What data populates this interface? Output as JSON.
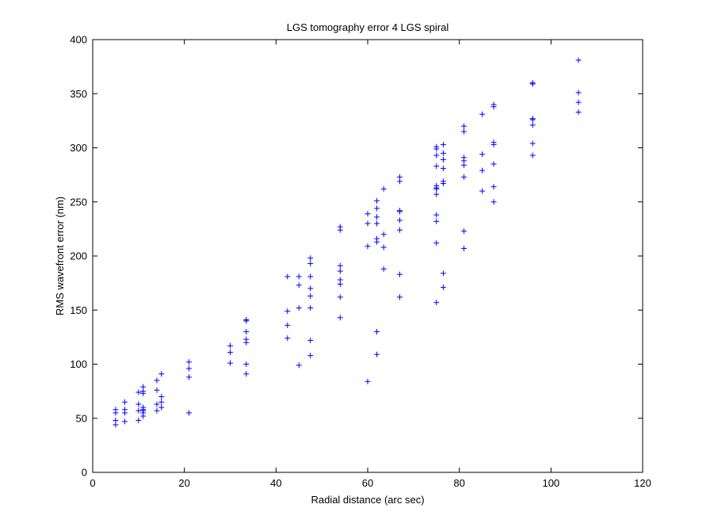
{
  "chart_data": {
    "type": "scatter",
    "title": "LGS tomography error 4 LGS spiral",
    "xlabel": "Radial distance (arc sec)",
    "ylabel": "RMS wavefront error (nm)",
    "xlim": [
      0,
      120
    ],
    "ylim": [
      0,
      400
    ],
    "xticks": [
      0,
      20,
      40,
      60,
      80,
      100,
      120
    ],
    "yticks": [
      0,
      50,
      100,
      150,
      200,
      250,
      300,
      350,
      400
    ],
    "grid": false,
    "legend": "none",
    "marker": "+",
    "color": "#0000ff",
    "series": [
      {
        "points": [
          [
            5,
            58
          ],
          [
            5,
            55
          ],
          [
            5,
            48
          ],
          [
            5,
            44
          ],
          [
            7,
            65
          ],
          [
            7,
            58
          ],
          [
            7,
            55
          ],
          [
            7,
            47
          ],
          [
            10,
            74
          ],
          [
            10,
            63
          ],
          [
            10,
            57
          ],
          [
            10,
            48
          ],
          [
            11,
            79
          ],
          [
            11,
            75
          ],
          [
            11,
            73
          ],
          [
            11,
            60
          ],
          [
            11,
            58
          ],
          [
            11,
            57
          ],
          [
            11,
            55
          ],
          [
            11,
            52
          ],
          [
            14,
            85
          ],
          [
            14,
            76
          ],
          [
            14,
            63
          ],
          [
            14,
            57
          ],
          [
            15,
            91
          ],
          [
            15,
            70
          ],
          [
            15,
            65
          ],
          [
            15,
            60
          ],
          [
            21,
            102
          ],
          [
            21,
            96
          ],
          [
            21,
            88
          ],
          [
            21,
            55
          ],
          [
            30,
            117
          ],
          [
            30,
            111
          ],
          [
            30,
            101
          ],
          [
            33.5,
            141
          ],
          [
            33.5,
            140
          ],
          [
            33.5,
            130
          ],
          [
            33.5,
            123
          ],
          [
            33.5,
            120
          ],
          [
            33.5,
            100
          ],
          [
            33.5,
            91
          ],
          [
            42.5,
            181
          ],
          [
            42.5,
            149
          ],
          [
            42.5,
            136
          ],
          [
            42.5,
            124
          ],
          [
            45,
            181
          ],
          [
            45,
            173
          ],
          [
            45,
            152
          ],
          [
            45,
            99
          ],
          [
            47.5,
            198
          ],
          [
            47.5,
            193
          ],
          [
            47.5,
            181
          ],
          [
            47.5,
            170
          ],
          [
            47.5,
            163
          ],
          [
            47.5,
            152
          ],
          [
            47.5,
            122
          ],
          [
            47.5,
            108
          ],
          [
            54,
            227
          ],
          [
            54,
            224
          ],
          [
            54,
            191
          ],
          [
            54,
            186
          ],
          [
            54,
            178
          ],
          [
            54,
            174
          ],
          [
            54,
            162
          ],
          [
            54,
            143
          ],
          [
            60,
            239
          ],
          [
            60,
            230
          ],
          [
            60,
            209
          ],
          [
            60,
            84
          ],
          [
            62,
            251
          ],
          [
            62,
            244
          ],
          [
            62,
            236
          ],
          [
            62,
            230
          ],
          [
            62,
            216
          ],
          [
            62,
            213
          ],
          [
            62,
            130
          ],
          [
            62,
            109
          ],
          [
            63.5,
            262
          ],
          [
            63.5,
            220
          ],
          [
            63.5,
            208
          ],
          [
            63.5,
            188
          ],
          [
            67,
            273
          ],
          [
            67,
            269
          ],
          [
            67,
            242
          ],
          [
            67,
            241
          ],
          [
            67,
            233
          ],
          [
            67,
            224
          ],
          [
            67,
            183
          ],
          [
            67,
            162
          ],
          [
            75,
            301
          ],
          [
            75,
            299
          ],
          [
            75,
            293
          ],
          [
            75,
            283
          ],
          [
            75,
            265
          ],
          [
            75,
            263
          ],
          [
            75,
            262
          ],
          [
            75,
            257
          ],
          [
            75,
            238
          ],
          [
            75,
            232
          ],
          [
            75,
            212
          ],
          [
            75,
            157
          ],
          [
            76.5,
            303
          ],
          [
            76.5,
            295
          ],
          [
            76.5,
            289
          ],
          [
            76.5,
            281
          ],
          [
            76.5,
            269
          ],
          [
            76.5,
            267
          ],
          [
            76.5,
            184
          ],
          [
            76.5,
            171
          ],
          [
            81,
            320
          ],
          [
            81,
            315
          ],
          [
            81,
            291
          ],
          [
            81,
            288
          ],
          [
            81,
            284
          ],
          [
            81,
            273
          ],
          [
            81,
            223
          ],
          [
            81,
            207
          ],
          [
            85,
            331
          ],
          [
            85,
            294
          ],
          [
            85,
            279
          ],
          [
            85,
            260
          ],
          [
            87.5,
            340
          ],
          [
            87.5,
            338
          ],
          [
            87.5,
            305
          ],
          [
            87.5,
            303
          ],
          [
            87.5,
            285
          ],
          [
            87.5,
            264
          ],
          [
            87.5,
            250
          ],
          [
            96,
            360
          ],
          [
            96,
            359
          ],
          [
            96,
            327
          ],
          [
            96,
            326
          ],
          [
            96,
            321
          ],
          [
            96,
            304
          ],
          [
            96,
            293
          ],
          [
            106,
            381
          ],
          [
            106,
            351
          ],
          [
            106,
            342
          ],
          [
            106,
            333
          ]
        ]
      }
    ]
  }
}
